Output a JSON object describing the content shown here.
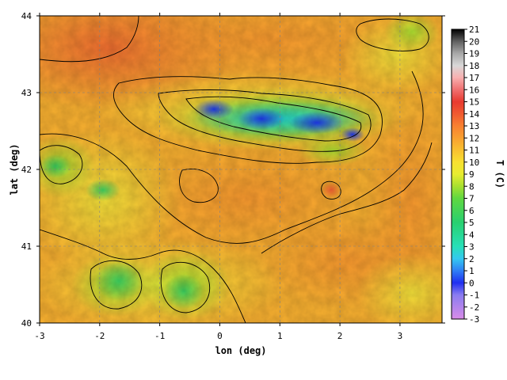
{
  "chart_data": {
    "type": "heatmap",
    "xlabel": "lon (deg)",
    "ylabel": "lat (deg)",
    "colorbar_label": "T (C)",
    "xlim": [
      -3,
      3.7
    ],
    "ylim": [
      40,
      44
    ],
    "x_ticks": [
      -3,
      -2,
      -1,
      0,
      1,
      2,
      3
    ],
    "y_ticks": [
      40,
      41,
      42,
      43,
      44
    ],
    "colorbar": {
      "min": -3,
      "max": 21,
      "ticks": [
        -3,
        -2,
        -1,
        0,
        1,
        2,
        3,
        4,
        5,
        6,
        7,
        8,
        9,
        10,
        11,
        12,
        13,
        14,
        15,
        16,
        17,
        18,
        19,
        20,
        21
      ],
      "stops": [
        {
          "v": -3,
          "color": "#d98ce8"
        },
        {
          "v": -1,
          "color": "#8a7cf0"
        },
        {
          "v": 0,
          "color": "#1f2ff0"
        },
        {
          "v": 1,
          "color": "#2f7ff5"
        },
        {
          "v": 2,
          "color": "#34c8f0"
        },
        {
          "v": 3,
          "color": "#28e0b8"
        },
        {
          "v": 5,
          "color": "#28d070"
        },
        {
          "v": 7,
          "color": "#60d840"
        },
        {
          "v": 8,
          "color": "#a8e030"
        },
        {
          "v": 9,
          "color": "#e8ec30"
        },
        {
          "v": 10,
          "color": "#f8e030"
        },
        {
          "v": 11,
          "color": "#f8c030"
        },
        {
          "v": 12,
          "color": "#f8a030"
        },
        {
          "v": 13,
          "color": "#f88030"
        },
        {
          "v": 14,
          "color": "#f05a30"
        },
        {
          "v": 15,
          "color": "#e83a30"
        },
        {
          "v": 16,
          "color": "#f07070"
        },
        {
          "v": 17,
          "color": "#f8b0b0"
        },
        {
          "v": 18,
          "color": "#d8d8d8"
        },
        {
          "v": 19,
          "color": "#a8a8a8"
        },
        {
          "v": 20,
          "color": "#606060"
        },
        {
          "v": 21,
          "color": "#000000"
        }
      ]
    },
    "grid": true,
    "grid_style": "dashed",
    "contours": true,
    "regions": [
      {
        "lon": 0.6,
        "lat": 42.75,
        "temp": 1
      },
      {
        "lon": 1.5,
        "lat": 42.65,
        "temp": 0.5
      },
      {
        "lon": 2.1,
        "lat": 42.55,
        "temp": 2
      },
      {
        "lon": 0.0,
        "lat": 42.8,
        "temp": 5
      },
      {
        "lon": -1.6,
        "lat": 40.4,
        "temp": 7
      },
      {
        "lon": -0.6,
        "lat": 40.5,
        "temp": 7.5
      },
      {
        "lon": -2.8,
        "lat": 42.0,
        "temp": 8
      },
      {
        "lon": 0.0,
        "lat": 41.6,
        "temp": 12.5
      },
      {
        "lon": -2.8,
        "lat": 43.8,
        "temp": 13.5
      },
      {
        "lon": 3.3,
        "lat": 40.6,
        "temp": 11.5
      }
    ]
  }
}
